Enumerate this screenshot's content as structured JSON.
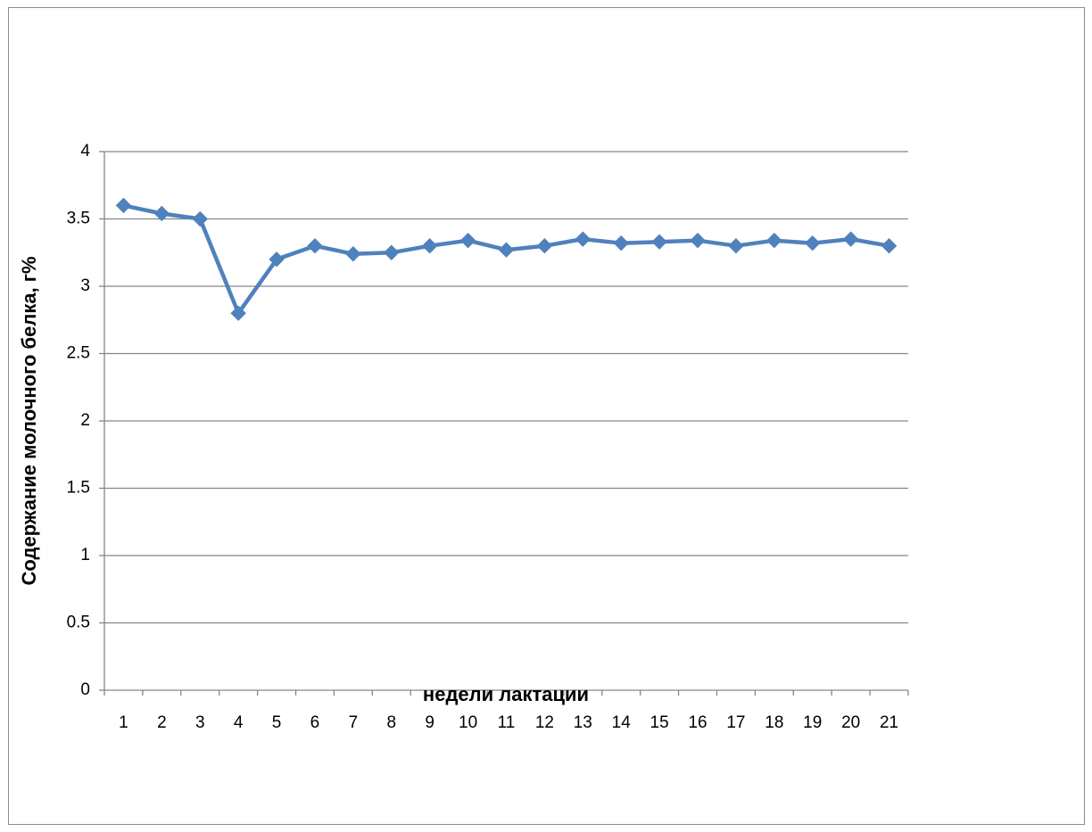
{
  "chart_data": {
    "type": "line",
    "title": "",
    "xlabel": "недели лактации",
    "ylabel": "Содержание молочного белка, г%",
    "categories": [
      "1",
      "2",
      "3",
      "4",
      "5",
      "6",
      "7",
      "8",
      "9",
      "10",
      "11",
      "12",
      "13",
      "14",
      "15",
      "16",
      "17",
      "18",
      "19",
      "20",
      "21"
    ],
    "series": [
      {
        "values": [
          3.6,
          3.54,
          3.5,
          2.8,
          3.2,
          3.3,
          3.24,
          3.25,
          3.3,
          3.34,
          3.27,
          3.3,
          3.35,
          3.32,
          3.33,
          3.34,
          3.3,
          3.34,
          3.32,
          3.35,
          3.3
        ],
        "color": "#4F81BD",
        "marker": "diamond"
      }
    ],
    "ylim": [
      0,
      4
    ],
    "yticks": [
      "0",
      "0.5",
      "1",
      "1.5",
      "2",
      "2.5",
      "3",
      "3.5",
      "4"
    ],
    "grid": true,
    "legend": "none"
  }
}
